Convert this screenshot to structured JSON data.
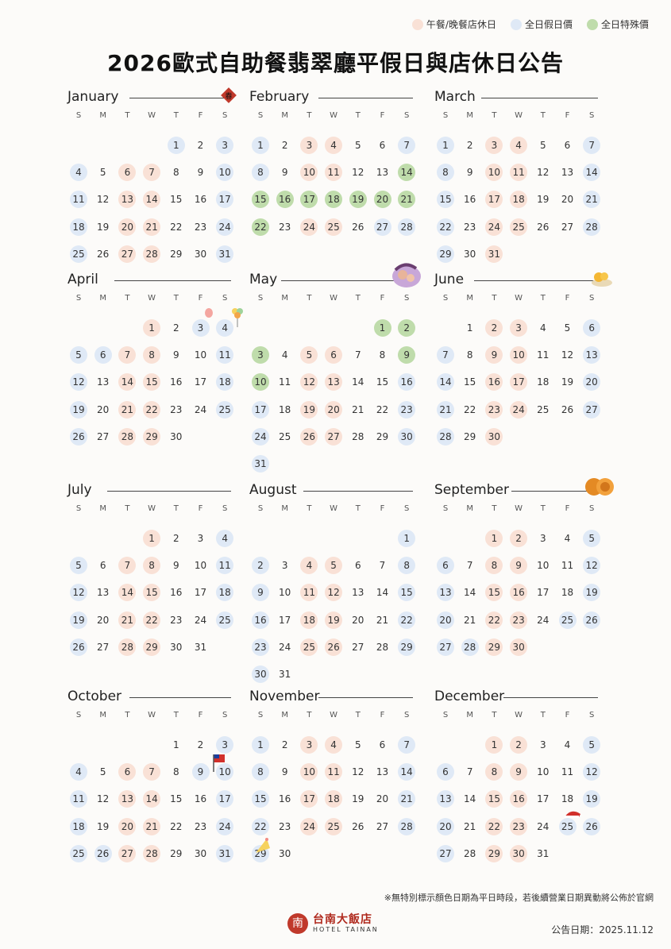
{
  "legend": {
    "items": [
      {
        "label": "午餐/晚餐店休日",
        "color": "#f9e1d6"
      },
      {
        "label": "全日假日價",
        "color": "#dfe9f6"
      },
      {
        "label": "全日特殊價",
        "color": "#bfdcab"
      }
    ]
  },
  "title": "2026歐式自助餐翡翠廳平假日與店休日公告",
  "weekdays": [
    "S",
    "M",
    "T",
    "W",
    "T",
    "F",
    "S"
  ],
  "months": [
    {
      "name": "January",
      "offset": 4,
      "days": 31,
      "r": [
        6,
        7,
        13,
        14,
        20,
        21,
        27,
        28
      ],
      "b": [
        1,
        3,
        4,
        10,
        11,
        17,
        18,
        24,
        25,
        31
      ],
      "g": []
    },
    {
      "name": "February",
      "offset": 0,
      "days": 28,
      "r": [
        3,
        4,
        10,
        11,
        24,
        25
      ],
      "b": [
        1,
        7,
        8,
        27,
        28
      ],
      "g": [
        14,
        15,
        16,
        17,
        18,
        19,
        20,
        21,
        22
      ]
    },
    {
      "name": "March",
      "offset": 0,
      "days": 31,
      "r": [
        3,
        4,
        10,
        11,
        17,
        18,
        24,
        25,
        31
      ],
      "b": [
        1,
        7,
        8,
        14,
        15,
        21,
        22,
        28,
        29
      ],
      "g": []
    },
    {
      "name": "April",
      "offset": 3,
      "days": 30,
      "r": [
        1,
        7,
        8,
        14,
        15,
        21,
        22,
        28,
        29
      ],
      "b": [
        3,
        4,
        5,
        6,
        11,
        12,
        18,
        19,
        25,
        26
      ],
      "g": []
    },
    {
      "name": "May",
      "offset": 5,
      "days": 31,
      "r": [
        5,
        6,
        12,
        13,
        19,
        20,
        26,
        27
      ],
      "b": [
        16,
        17,
        23,
        24,
        30,
        31
      ],
      "g": [
        1,
        2,
        3,
        9,
        10
      ]
    },
    {
      "name": "June",
      "offset": 1,
      "days": 30,
      "r": [
        2,
        3,
        9,
        10,
        16,
        17,
        23,
        24,
        30
      ],
      "b": [
        6,
        7,
        13,
        14,
        20,
        21,
        27,
        28
      ],
      "g": []
    },
    {
      "name": "July",
      "offset": 3,
      "days": 31,
      "r": [
        1,
        7,
        8,
        14,
        15,
        21,
        22,
        28,
        29
      ],
      "b": [
        4,
        5,
        11,
        12,
        18,
        19,
        25,
        26
      ],
      "g": []
    },
    {
      "name": "August",
      "offset": 6,
      "days": 31,
      "r": [
        4,
        5,
        11,
        12,
        18,
        19,
        25,
        26
      ],
      "b": [
        1,
        2,
        8,
        9,
        15,
        16,
        22,
        23,
        29,
        30
      ],
      "g": []
    },
    {
      "name": "September",
      "offset": 2,
      "days": 30,
      "r": [
        1,
        2,
        8,
        9,
        15,
        16,
        22,
        23,
        29,
        30
      ],
      "b": [
        5,
        6,
        12,
        13,
        19,
        20,
        25,
        26,
        27,
        28
      ],
      "g": []
    },
    {
      "name": "October",
      "offset": 4,
      "days": 31,
      "r": [
        6,
        7,
        13,
        14,
        20,
        21,
        27,
        28
      ],
      "b": [
        3,
        4,
        9,
        10,
        11,
        17,
        18,
        24,
        25,
        26,
        31
      ],
      "g": []
    },
    {
      "name": "November",
      "offset": 0,
      "days": 30,
      "r": [
        3,
        4,
        10,
        11,
        17,
        18,
        24,
        25
      ],
      "b": [
        1,
        7,
        8,
        14,
        15,
        21,
        22,
        28,
        29
      ],
      "g": []
    },
    {
      "name": "December",
      "offset": 2,
      "days": 31,
      "r": [
        1,
        2,
        8,
        9,
        15,
        16,
        22,
        23,
        29,
        30
      ],
      "b": [
        5,
        6,
        12,
        13,
        19,
        20,
        25,
        26,
        27
      ],
      "g": []
    }
  ],
  "footnote": "※無特別標示顏色日期為平日時段，若後續營業日期異動將公佈於官網",
  "logo": {
    "mark": "南",
    "chinese": "台南大飯店",
    "english": "HOTEL TAINAN"
  },
  "announce_date": "公告日期：2025.11.12",
  "decorations": [
    "new-year-couplet-icon",
    "balloons-icon",
    "mother-child-icon",
    "mango-shaved-ice-icon",
    "mooncake-icon",
    "taiwan-flag-icon",
    "christmas-hat-icon",
    "party-hat-icon"
  ]
}
